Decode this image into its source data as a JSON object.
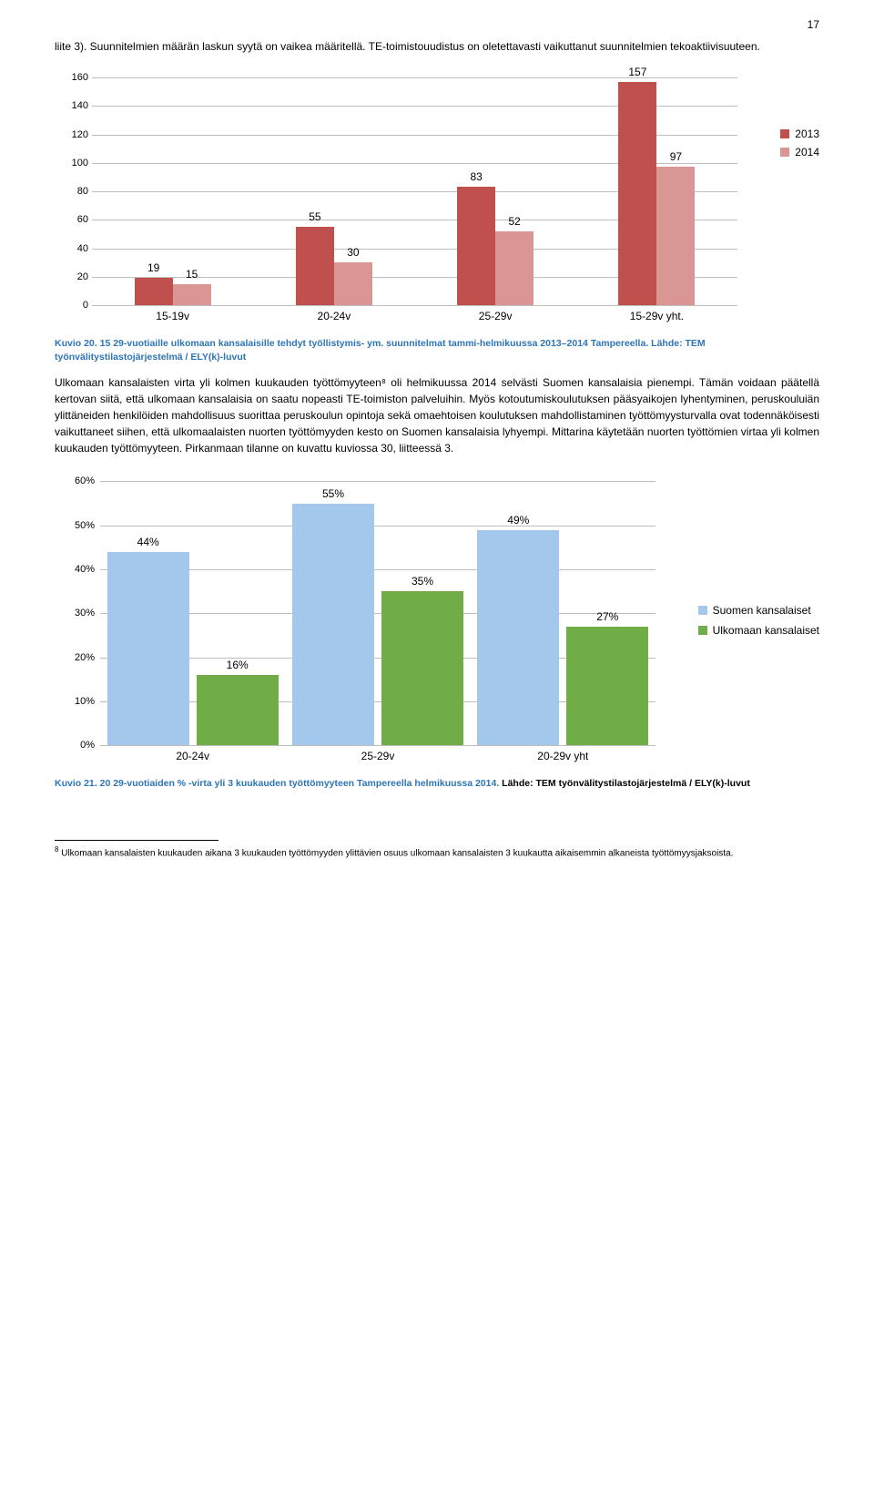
{
  "page_number": "17",
  "intro_text": "liite 3). Suunnitelmien määrän laskun syytä on vaikea määritellä. TE-toimistouudistus on oletettavasti vaikuttanut suunnitelmien tekoaktiivisuuteen.",
  "chart1": {
    "type": "bar",
    "categories": [
      "15-19v",
      "20-24v",
      "25-29v",
      "15-29v yht."
    ],
    "series": [
      {
        "name": "2013",
        "color": "#c0504d",
        "values": [
          19,
          55,
          83,
          157
        ]
      },
      {
        "name": "2014",
        "color": "#d99694",
        "values": [
          15,
          30,
          52,
          97
        ]
      }
    ],
    "ymax": 160,
    "ytick_step": 20,
    "grid_color": "#bfbfbf",
    "background": "#ffffff",
    "bar_label_fontsize": 12
  },
  "caption1_prefix": "Kuvio 20. 15 29-vuotiaille ulkomaan kansalaisille tehdyt työllistymis- ym. suunnitelmat tammi-helmikuussa 2013–2014 Tampereella.",
  "caption1_suffix": " Lähde: TEM työnvälitystilastojärjestelmä / ELY(k)-luvut",
  "body_text": "Ulkomaan kansalaisten virta yli kolmen kuukauden työttömyyteen⁸ oli helmikuussa 2014 selvästi Suomen kansalaisia pienempi. Tämän voidaan päätellä kertovan siitä, että ulkomaan kansalaisia on saatu nopeasti TE-toimiston palveluihin. Myös kotoutumiskoulutuksen pääsyaikojen lyhentyminen, peruskouluiän ylittäneiden henkilöiden mahdollisuus suorittaa peruskoulun opintoja sekä omaehtoisen koulutuksen mahdollistaminen työttömyysturvalla ovat todennäköisesti vaikuttaneet siihen, että ulkomaalaisten nuorten työttömyyden kesto on Suomen kansalaisia lyhyempi. Mittarina käytetään nuorten työttömien virtaa yli kolmen kuukauden työttömyyteen. Pirkanmaan tilanne on kuvattu kuviossa 30, liitteessä 3.",
  "chart2": {
    "type": "bar",
    "categories": [
      "20-24v",
      "25-29v",
      "20-29v yht"
    ],
    "series": [
      {
        "name": "Suomen kansalaiset",
        "color": "#a4c8ec",
        "values": [
          44,
          55,
          49
        ]
      },
      {
        "name": "Ulkomaan kansalaiset",
        "color": "#70ad47",
        "values": [
          16,
          35,
          27
        ]
      }
    ],
    "ymax": 60,
    "ytick_step": 10,
    "grid_color": "#bfbfbf",
    "background": "#ffffff",
    "value_suffix": "%"
  },
  "caption2_prefix": "Kuvio 21. 20 29-vuotiaiden % -virta yli 3 kuukauden työttömyyteen Tampereella helmikuussa 2014.",
  "caption2_suffix": " Lähde: TEM työnvälitystilastojärjestelmä / ELY(k)-luvut",
  "footnote_marker": "8",
  "footnote_text": " Ulkomaan kansalaisten kuukauden aikana 3 kuukauden työttömyyden ylittävien osuus ulkomaan kansalaisten 3 kuukautta aikaisemmin alkaneista työttömyysjaksoista."
}
